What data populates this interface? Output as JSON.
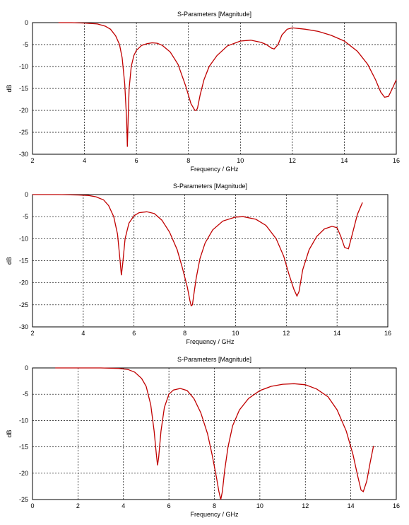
{
  "accent_color": "#c00000",
  "chart_data": [
    {
      "type": "line",
      "title": "S-Parameters [Magnitude]",
      "xlabel": "Frequency / GHz",
      "ylabel": "dB",
      "xlim": [
        2,
        16
      ],
      "ylim": [
        -30,
        0
      ],
      "xticks": [
        2,
        4,
        6,
        8,
        10,
        12,
        14,
        16
      ],
      "yticks": [
        0,
        -5,
        -10,
        -15,
        -20,
        -25,
        -30
      ],
      "grid": true,
      "series": [
        {
          "color": "#c00000",
          "x": [
            3.0,
            3.5,
            4.0,
            4.5,
            4.8,
            5.0,
            5.2,
            5.35,
            5.45,
            5.55,
            5.62,
            5.65,
            5.68,
            5.72,
            5.8,
            5.9,
            6.0,
            6.2,
            6.4,
            6.6,
            6.8,
            7.0,
            7.3,
            7.6,
            7.9,
            8.1,
            8.25,
            8.3,
            8.35,
            8.45,
            8.6,
            8.8,
            9.1,
            9.5,
            10.0,
            10.4,
            10.8,
            11.0,
            11.2,
            11.3,
            11.45,
            11.6,
            11.8,
            12.0,
            12.5,
            13.0,
            13.5,
            14.0,
            14.5,
            14.9,
            15.2,
            15.4,
            15.55,
            15.7,
            15.85,
            16.0
          ],
          "y": [
            0,
            0,
            -0.1,
            -0.3,
            -0.8,
            -1.5,
            -3.0,
            -5.0,
            -8.0,
            -14.0,
            -22.0,
            -28.3,
            -22.0,
            -15.0,
            -10.0,
            -7.5,
            -6.3,
            -5.2,
            -4.8,
            -4.6,
            -4.7,
            -5.2,
            -6.7,
            -9.5,
            -14.5,
            -18.5,
            -20.0,
            -20.0,
            -19.5,
            -16.5,
            -13.0,
            -10.0,
            -7.5,
            -5.3,
            -4.2,
            -4.0,
            -4.5,
            -5.0,
            -5.8,
            -6.0,
            -5.0,
            -2.8,
            -1.5,
            -1.2,
            -1.5,
            -2.0,
            -2.9,
            -4.2,
            -6.5,
            -9.5,
            -13.0,
            -15.8,
            -17.0,
            -16.8,
            -15.0,
            -13.0
          ]
        }
      ]
    },
    {
      "type": "line",
      "title": "S-Parameters [Magnitude]",
      "xlabel": "Frequency / GHz",
      "ylabel": "dB",
      "xlim": [
        2,
        16
      ],
      "ylim": [
        -30,
        0
      ],
      "xticks": [
        2,
        4,
        6,
        8,
        10,
        12,
        14,
        16
      ],
      "yticks": [
        0,
        -5,
        -10,
        -15,
        -20,
        -25,
        -30
      ],
      "grid": true,
      "series": [
        {
          "color": "#c00000",
          "x": [
            2.0,
            3.0,
            3.8,
            4.2,
            4.5,
            4.8,
            5.0,
            5.2,
            5.35,
            5.45,
            5.5,
            5.55,
            5.65,
            5.8,
            6.0,
            6.2,
            6.5,
            6.8,
            7.1,
            7.4,
            7.7,
            7.9,
            8.1,
            8.2,
            8.25,
            8.3,
            8.35,
            8.45,
            8.6,
            8.8,
            9.1,
            9.5,
            10.0,
            10.3,
            10.8,
            11.2,
            11.6,
            11.9,
            12.1,
            12.3,
            12.42,
            12.5,
            12.65,
            12.9,
            13.2,
            13.5,
            13.8,
            14.0,
            14.15,
            14.3,
            14.45,
            14.6,
            14.8,
            15.0
          ],
          "y": [
            0,
            0,
            -0.1,
            -0.2,
            -0.5,
            -1.2,
            -2.5,
            -5.0,
            -9.0,
            -15.0,
            -18.3,
            -16.0,
            -10.0,
            -6.5,
            -4.8,
            -4.1,
            -3.9,
            -4.3,
            -5.8,
            -8.5,
            -12.5,
            -16.5,
            -21.0,
            -24.0,
            -25.2,
            -25.0,
            -23.0,
            -19.0,
            -14.5,
            -11.0,
            -8.0,
            -6.0,
            -5.1,
            -5.0,
            -5.6,
            -7.0,
            -10.0,
            -14.0,
            -18.0,
            -21.5,
            -23.0,
            -22.0,
            -17.0,
            -12.5,
            -9.5,
            -7.8,
            -7.2,
            -7.5,
            -9.5,
            -12.0,
            -12.3,
            -9.0,
            -4.5,
            -1.8
          ]
        }
      ]
    },
    {
      "type": "line",
      "title": "S-Parameters [Magnitude]",
      "xlabel": "Frequency / GHz",
      "ylabel": "dB",
      "xlim": [
        0,
        16
      ],
      "ylim": [
        -25,
        0
      ],
      "xticks": [
        0,
        2,
        4,
        6,
        8,
        10,
        12,
        14,
        16
      ],
      "yticks": [
        0,
        -5,
        -10,
        -15,
        -20,
        -25
      ],
      "grid": true,
      "series": [
        {
          "color": "#c00000",
          "x": [
            1.0,
            2.0,
            3.0,
            3.8,
            4.2,
            4.5,
            4.8,
            5.0,
            5.2,
            5.35,
            5.45,
            5.5,
            5.55,
            5.65,
            5.8,
            6.0,
            6.2,
            6.5,
            6.8,
            7.1,
            7.4,
            7.7,
            7.9,
            8.1,
            8.2,
            8.28,
            8.35,
            8.45,
            8.6,
            8.8,
            9.1,
            9.5,
            10.0,
            10.5,
            11.0,
            11.5,
            12.0,
            12.5,
            13.0,
            13.4,
            13.8,
            14.1,
            14.3,
            14.45,
            14.55,
            14.7,
            14.85,
            15.0
          ],
          "y": [
            0,
            0,
            0,
            -0.1,
            -0.3,
            -0.8,
            -2.0,
            -3.5,
            -7.0,
            -12.0,
            -16.5,
            -18.5,
            -17.0,
            -12.0,
            -7.5,
            -5.0,
            -4.2,
            -3.9,
            -4.3,
            -5.8,
            -8.5,
            -12.5,
            -16.5,
            -21.0,
            -23.5,
            -25.0,
            -23.5,
            -19.5,
            -15.0,
            -11.0,
            -8.0,
            -5.8,
            -4.3,
            -3.5,
            -3.1,
            -3.0,
            -3.2,
            -4.0,
            -5.5,
            -8.0,
            -12.0,
            -16.5,
            -20.5,
            -23.2,
            -23.5,
            -21.5,
            -18.0,
            -14.8
          ]
        }
      ]
    }
  ]
}
